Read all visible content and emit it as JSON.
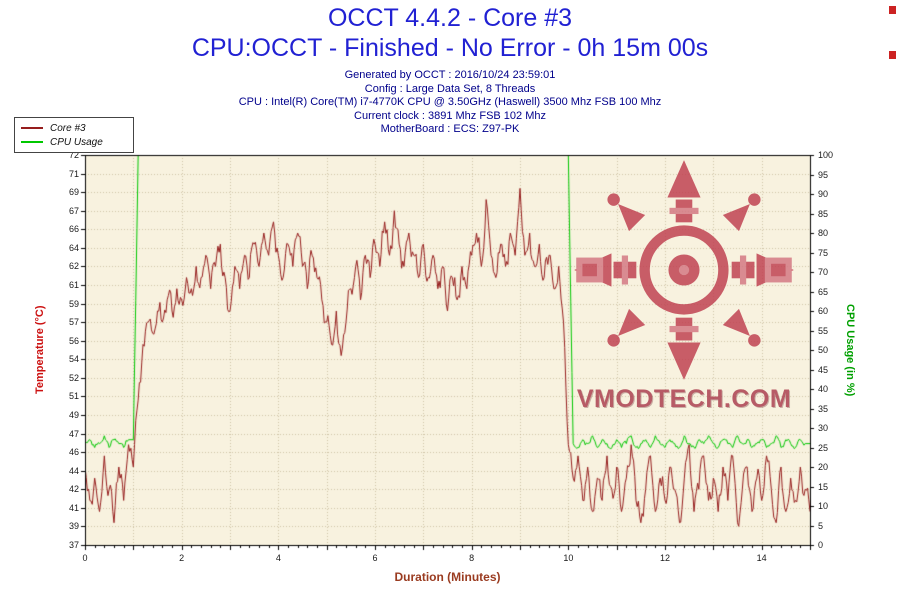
{
  "header": {
    "title_line1": "OCCT 4.4.2 - Core #3",
    "title_line2": "CPU:OCCT - Finished - No Error - 0h 15m 00s",
    "title_color": "#2121d3",
    "info_lines": [
      "Generated by OCCT : 2016/10/24 23:59:01",
      "Config : Large Data Set, 8 Threads",
      "CPU : Intel(R) Core(TM) i7-4770K CPU @ 3.50GHz (Haswell) 3500 Mhz FSB 100 Mhz",
      "Current clock : 3891 Mhz FSB 102 Mhz",
      "MotherBoard : ECS: Z97-PK"
    ]
  },
  "legend": {
    "items": [
      {
        "label": "Core #3",
        "color": "#961d1d"
      },
      {
        "label": "CPU Usage",
        "color": "#00c800"
      }
    ]
  },
  "watermark": {
    "text": "VMODTECH.COM",
    "color": "#a93a4c",
    "logo_color": "#bd3c4e",
    "logo_color_light": "#d27580"
  },
  "chart_data": {
    "type": "line",
    "title": "OCCT 4.4.2 - Core #3",
    "subtitle": "CPU:OCCT - Finished - No Error - 0h 15m 00s",
    "xlabel": "Duration (Minutes)",
    "xlabel_color": "#9a3b20",
    "x_range": [
      0,
      15
    ],
    "x_labeled_ticks": [
      0,
      2,
      4,
      6,
      8,
      10,
      12,
      14
    ],
    "grid": true,
    "legend_position": "top-left",
    "plot_bg": "#f8f2df",
    "grid_color": "rgba(165,145,110,0.5)",
    "seed": 20161024,
    "y_left": {
      "label": "Temperature (°C)",
      "color": "#cc1111",
      "range": [
        37,
        72
      ],
      "ticks": [
        72,
        71,
        69,
        67,
        66,
        64,
        62,
        61,
        59,
        57,
        56,
        54,
        52,
        51,
        49,
        47,
        46,
        44,
        42,
        41,
        39,
        37
      ]
    },
    "y_right": {
      "label": "CPU Usage (in %)",
      "color": "#00a000",
      "range": [
        0,
        100
      ],
      "ticks": [
        100,
        95,
        90,
        85,
        80,
        75,
        70,
        65,
        60,
        55,
        50,
        45,
        40,
        35,
        30,
        25,
        20,
        15,
        10,
        5,
        0
      ]
    },
    "series": [
      {
        "name": "Core #3",
        "axis": "left",
        "color": "#961d1d",
        "x_start": 0,
        "x_step": 0.1,
        "jitter": 1.4,
        "clamp": [
          37,
          72
        ],
        "values": [
          44,
          41,
          43,
          40,
          45,
          42,
          39,
          44,
          41,
          46,
          44,
          50,
          55,
          57,
          56,
          58,
          57,
          59,
          58,
          60,
          59,
          61,
          60,
          62,
          61,
          63,
          60,
          62,
          64,
          61,
          58,
          62,
          60,
          63,
          61,
          64,
          62,
          65,
          63,
          66,
          63,
          61,
          64,
          62,
          65,
          62,
          60,
          63,
          61,
          59,
          57,
          55,
          58,
          54,
          57,
          60,
          62,
          59,
          63,
          61,
          64,
          62,
          66,
          63,
          67,
          64,
          62,
          65,
          63,
          61,
          64,
          61,
          63,
          60,
          62,
          58,
          61,
          59,
          62,
          60,
          63,
          65,
          62,
          68,
          63,
          61,
          64,
          62,
          65,
          63,
          69,
          63,
          65,
          62,
          64,
          61,
          63,
          60,
          62,
          57,
          46,
          43,
          45,
          41,
          44,
          40,
          43,
          41,
          45,
          42,
          44,
          40,
          43,
          46,
          41,
          39,
          42,
          45,
          40,
          43,
          41,
          44,
          42,
          39,
          43,
          46,
          40,
          42,
          45,
          41,
          43,
          40,
          44,
          41,
          45,
          39,
          42,
          44,
          40,
          43,
          41,
          45,
          42,
          39,
          44,
          40,
          43,
          41,
          44,
          42,
          40
        ]
      },
      {
        "name": "CPU Usage",
        "axis": "right",
        "color": "#00c800",
        "x_start": 0,
        "x_step": 0.1,
        "jitter": 0.9,
        "clamp": [
          0,
          100
        ],
        "values": [
          26,
          27,
          25,
          26,
          28,
          25,
          27,
          26,
          25,
          27,
          27,
          100,
          100,
          100,
          100,
          100,
          100,
          100,
          100,
          100,
          100,
          100,
          100,
          100,
          100,
          100,
          100,
          100,
          100,
          100,
          100,
          100,
          100,
          100,
          100,
          100,
          100,
          100,
          100,
          100,
          100,
          100,
          100,
          100,
          100,
          100,
          100,
          100,
          100,
          100,
          100,
          100,
          100,
          100,
          100,
          100,
          100,
          100,
          100,
          100,
          100,
          100,
          100,
          100,
          100,
          100,
          100,
          100,
          100,
          100,
          100,
          100,
          100,
          100,
          100,
          100,
          100,
          100,
          100,
          100,
          100,
          100,
          100,
          100,
          100,
          100,
          100,
          100,
          100,
          100,
          100,
          100,
          100,
          100,
          100,
          100,
          100,
          100,
          100,
          100,
          100,
          26,
          25,
          27,
          26,
          28,
          25,
          27,
          26,
          25,
          27,
          25,
          26,
          28,
          25,
          26,
          27,
          25,
          28,
          26,
          25,
          27,
          26,
          25,
          28,
          26,
          25,
          27,
          26,
          28,
          26,
          25,
          27,
          26,
          25,
          28,
          26,
          27,
          25,
          26,
          27,
          25,
          26,
          28,
          25,
          27,
          26,
          25,
          27,
          26,
          26
        ]
      }
    ]
  }
}
